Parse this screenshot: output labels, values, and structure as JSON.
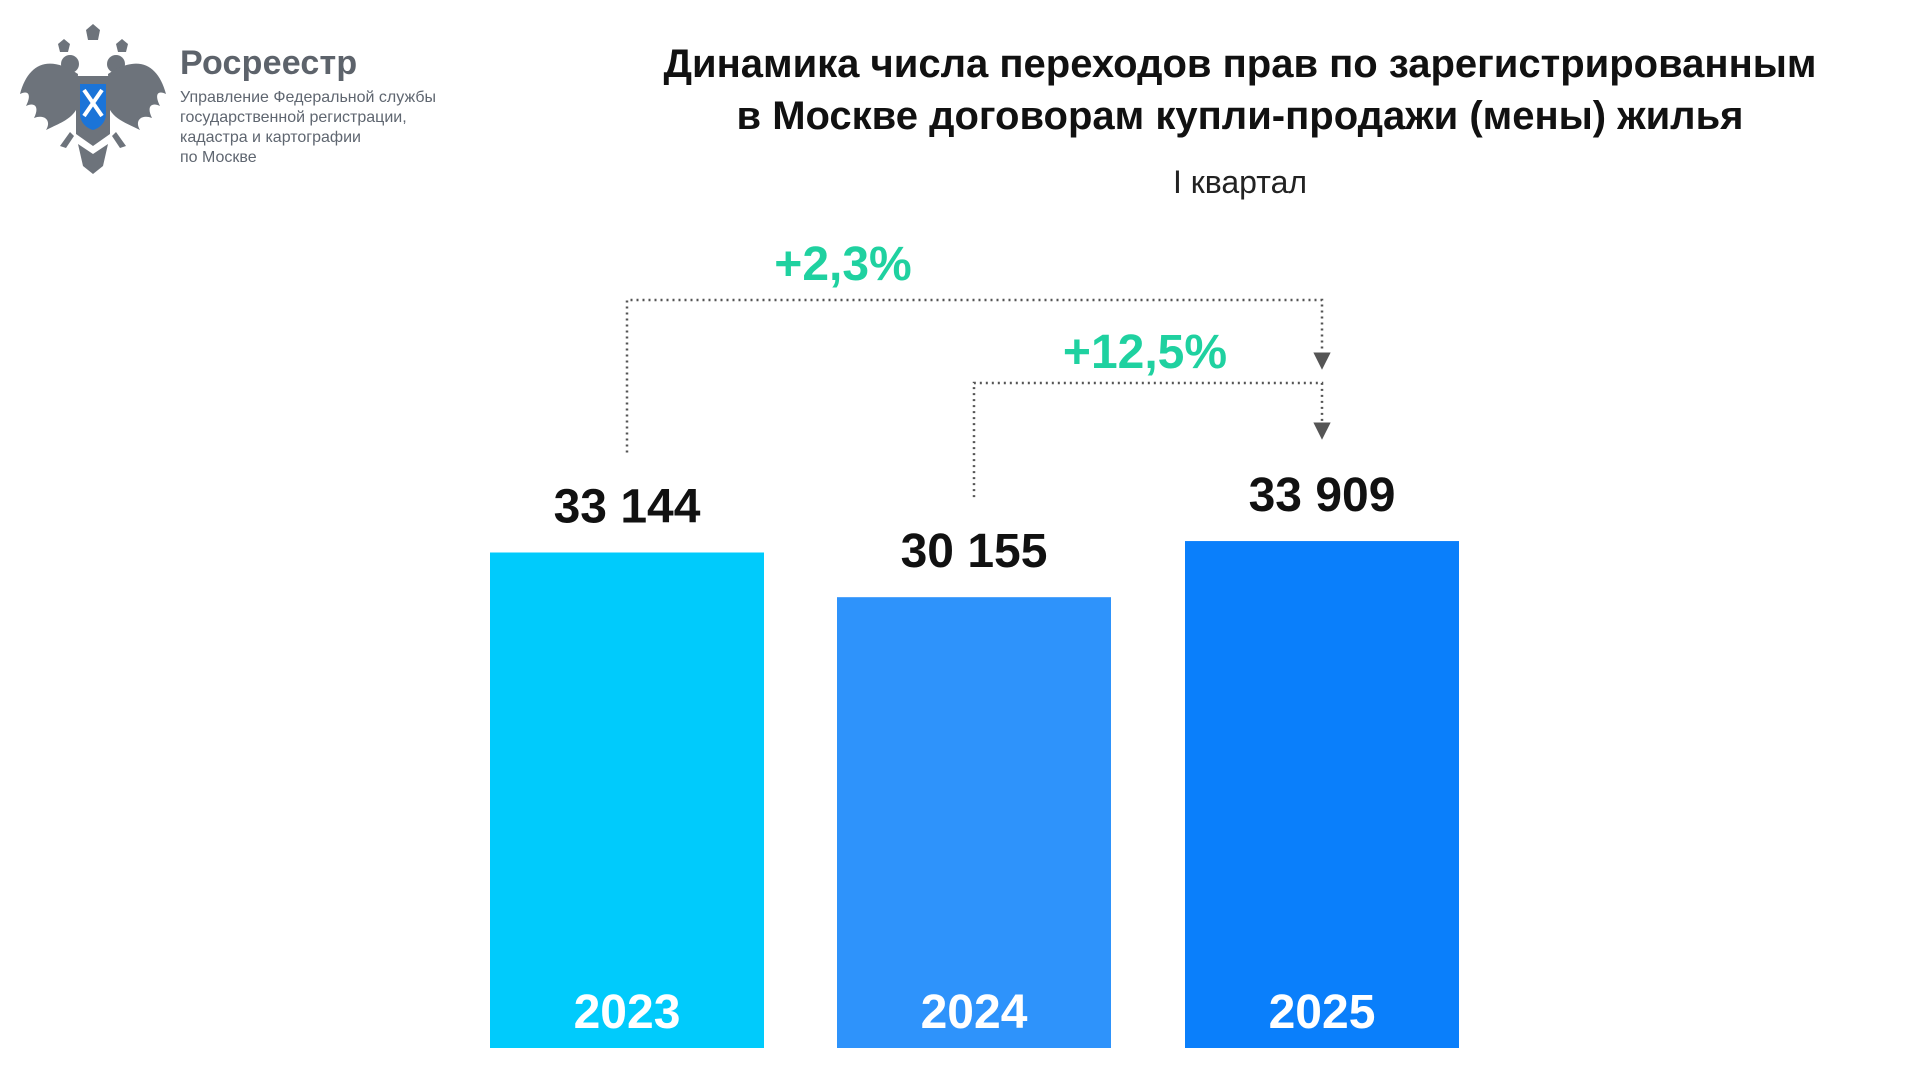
{
  "logo": {
    "icon": "double-headed-eagle-emblem-icon",
    "name": "Росреестр",
    "desc_lines": [
      "Управление Федеральной службы",
      "государственной регистрации,",
      "кадастра и картографии",
      "по Москве"
    ]
  },
  "chart_data": {
    "type": "bar",
    "title_lines": [
      "Динамика числа переходов прав по зарегистрированным",
      "в Москве договорам купли-продажи (мены) жилья"
    ],
    "subtitle": "I квартал",
    "xlabel": "",
    "ylabel": "",
    "grid": false,
    "legend": "none",
    "categories": [
      "2023",
      "2024",
      "2025"
    ],
    "values": [
      33144,
      30155,
      33909
    ],
    "value_labels": [
      "33 144",
      "30 155",
      "33 909"
    ],
    "bar_colors": [
      "#00cbfc",
      "#2e93fb",
      "#0a7ffb"
    ],
    "annotations": [
      {
        "text": "+2,3%",
        "from": "2023",
        "to": "2025",
        "color": "#1fd1a0"
      },
      {
        "text": "+12,5%",
        "from": "2024",
        "to": "2025",
        "color": "#1fd1a0"
      }
    ]
  }
}
